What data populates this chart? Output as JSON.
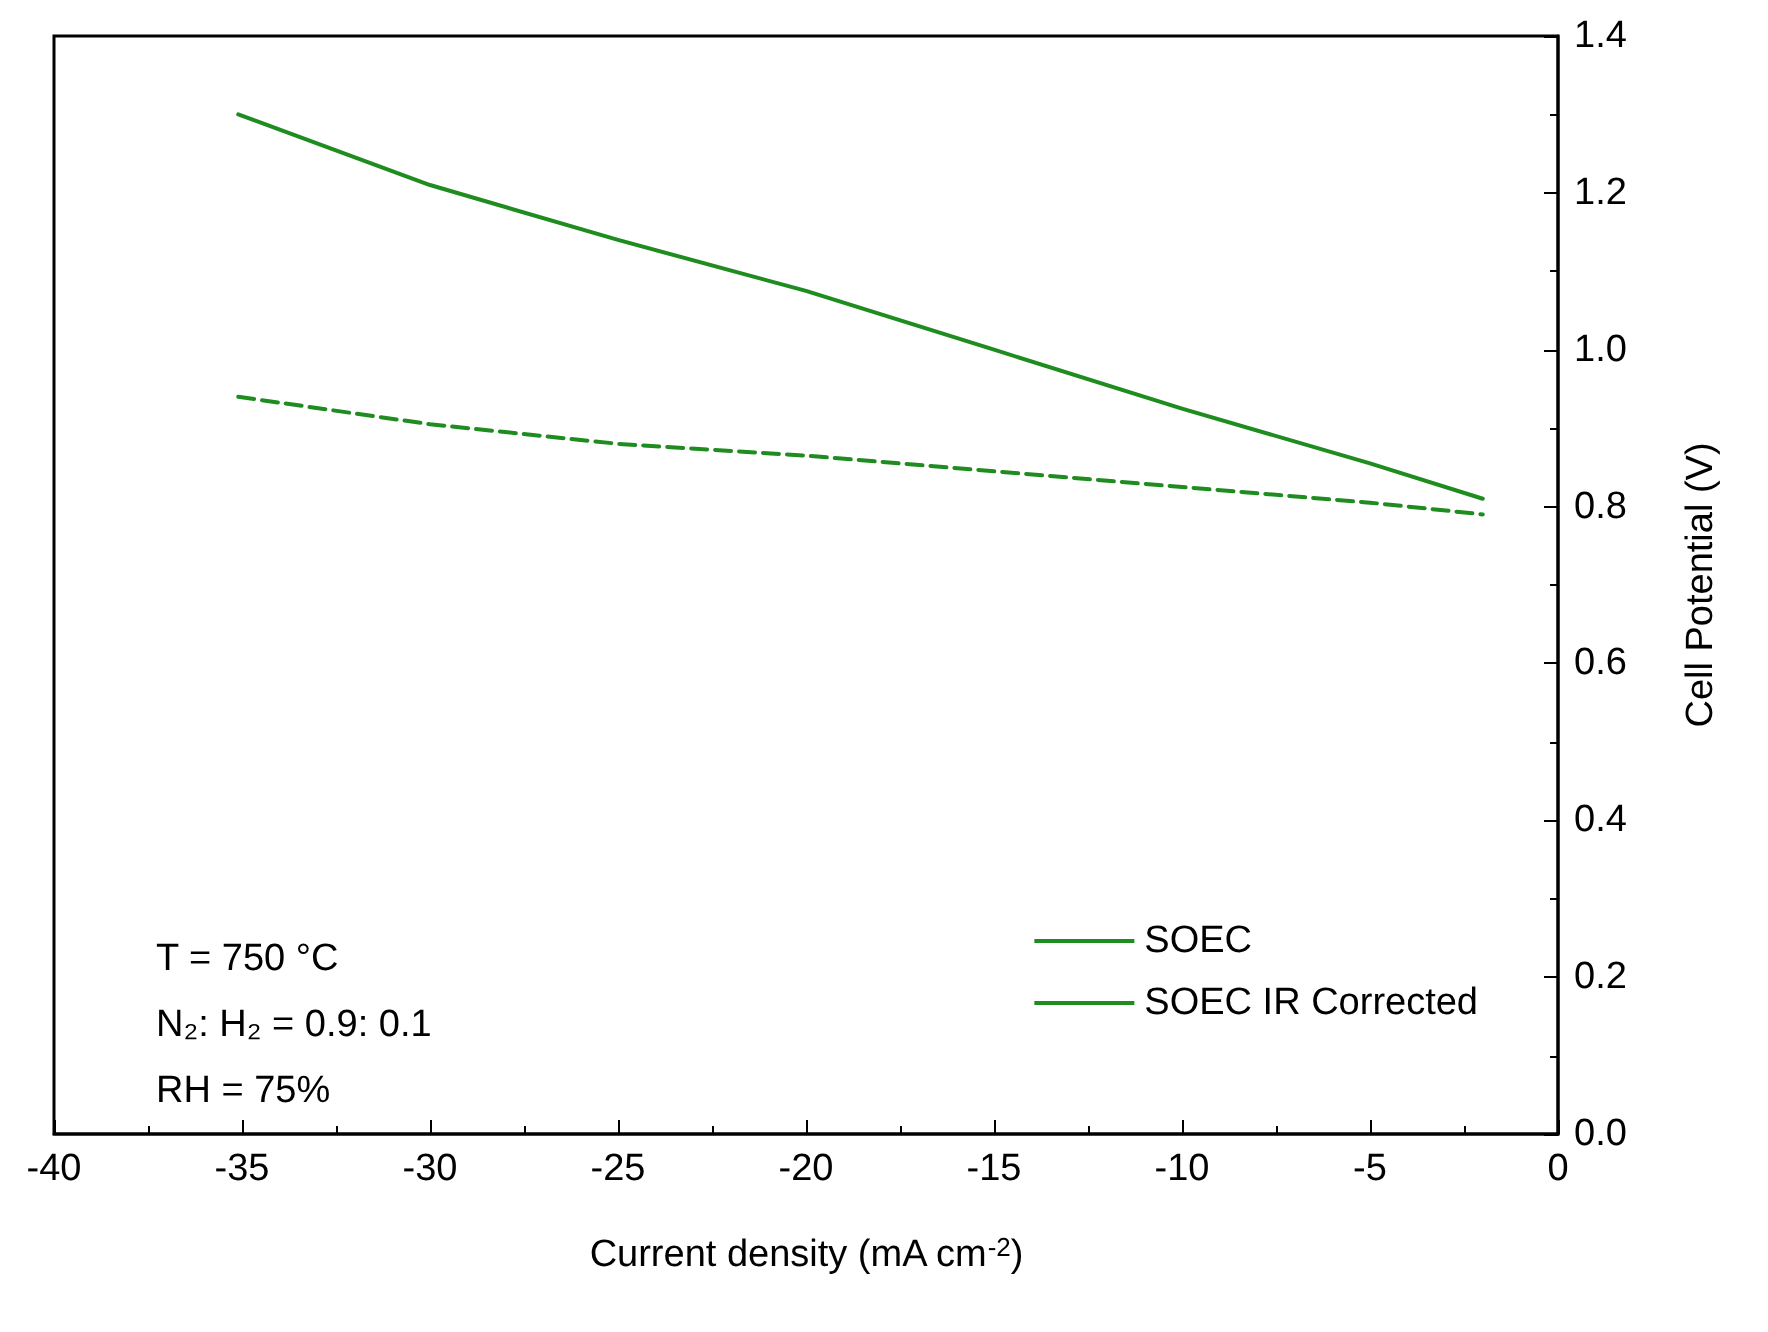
{
  "chart_data": {
    "type": "line",
    "xlabel": "Current density (mA cm$^{-2}$)",
    "ylabel": "Cell Potential (V)",
    "xlim": [
      -40,
      0
    ],
    "xticks": [
      -40,
      -35,
      -30,
      -25,
      -20,
      -15,
      -10,
      -5,
      0
    ],
    "ylim": [
      0,
      1.4
    ],
    "yticks": [
      {
        "value": 0,
        "label": "0.0"
      },
      0.2,
      0.4,
      0.6,
      0.8,
      {
        "value": 1,
        "label": "1.0"
      },
      1.2,
      1.4
    ],
    "series": [
      {
        "name": "SOEC",
        "color": "#1e8c1e",
        "line_style": "solid",
        "x": [
          -35.1,
          -30,
          -25,
          -20,
          -15,
          -10,
          -5,
          -2
        ],
        "values": [
          1.3,
          1.21,
          1.14,
          1.075,
          1.0,
          0.925,
          0.855,
          0.81
        ]
      },
      {
        "name": "SOEC IR Corrected",
        "color": "#1e8c1e",
        "line_style": "dashed",
        "x": [
          -35.1,
          -30,
          -25,
          -20,
          -15,
          -10,
          -5,
          -2
        ],
        "values": [
          0.94,
          0.905,
          0.88,
          0.865,
          0.845,
          0.825,
          0.805,
          0.79
        ]
      }
    ],
    "annotations": [
      "T = 750 °C",
      "N₂: H₂ = 0.9: 0.1",
      "RH = 75%"
    ],
    "legend": "bottom right",
    "grid": false,
    "marker": "none"
  }
}
